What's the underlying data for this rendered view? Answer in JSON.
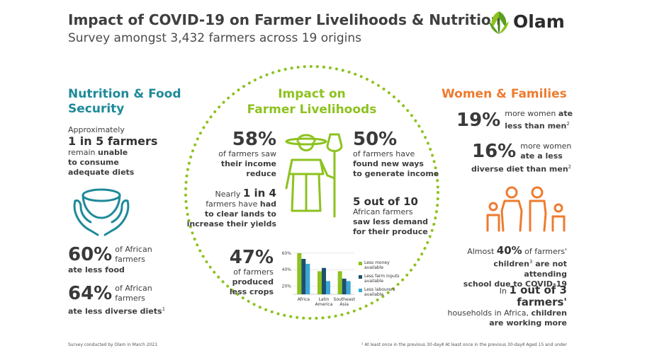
{
  "header": {
    "title": "Impact of COVID-19 on Farmer Livelihoods & Nutrition",
    "subtitle": "Survey amongst 3,432 farmers across 19 origins",
    "logo_text": "Olam"
  },
  "nutrition": {
    "heading_line1": "Nutrition & Food",
    "heading_line2": "Security",
    "intro_line1": "Approximately",
    "intro_big": "1 in 5 farmers",
    "intro_line3a": "remain ",
    "intro_line3b": "unable",
    "intro_line4": "to consume",
    "intro_line5": "adequate diets",
    "stat1_value": "60%",
    "stat1_label_a": "of African",
    "stat1_label_b": "farmers",
    "stat1_label_c": "ate less food",
    "stat2_value": "64%",
    "stat2_label_a": "of African",
    "stat2_label_b": "farmers",
    "stat2_label_c": "ate less diverse diets",
    "stat2_sup": "1"
  },
  "livelihoods": {
    "heading_line1": "Impact on",
    "heading_line2": "Farmer Livelihoods",
    "s1_value": "58%",
    "s1_a": "of farmers saw",
    "s1_b": "their income reduce",
    "s2_value": "50%",
    "s2_a": "of farmers have",
    "s2_b": "found new ways",
    "s2_c": "to generate income",
    "s3_a": "Nearly ",
    "s3_big": "1 in 4",
    "s3_b": "farmers have had",
    "s3_c": "to clear lands to",
    "s3_d": "increase their yields",
    "s4_big": "5 out of 10",
    "s4_a": "African farmers",
    "s4_b": "saw less demand",
    "s4_c": "for their produce",
    "s5_value": "47%",
    "s5_a": "of farmers",
    "s5_b": "produced",
    "s5_c": "less crops"
  },
  "women": {
    "heading": "Women & Families",
    "w1_value": "19%",
    "w1_a": "more women ",
    "w1_b": "ate",
    "w1_c": "less than men",
    "w1_sup": "2",
    "w2_value": "16%",
    "w2_a": "more women",
    "w2_b": "ate a less",
    "w2_c": "diverse diet than men",
    "w2_sup": "2",
    "c1_a": "Almost ",
    "c1_big": "40%",
    "c1_b": " of farmers'",
    "c1_c": "children",
    "c1_sup": "3",
    "c1_d": " are not attending",
    "c1_e": "school due to COVID-19",
    "c2_a": "In ",
    "c2_big": "1 out of 3 farmers'",
    "c2_b": "households in Africa, ",
    "c2_c": "children",
    "c2_d": "are working more"
  },
  "footer": {
    "left": "Survey conducted by Olam in March 2021",
    "n1": "¹ At least once in the previous 30-days",
    "n2": "² At least once in the previous 30-days",
    "n3": "³ Aged 15 and under"
  },
  "colors": {
    "teal": "#1e8a99",
    "green": "#8dc21f",
    "orange": "#ee7b2f",
    "blue": "#3aa7d6",
    "navy": "#1d4f6e"
  },
  "icons": [
    "hands-bowl-icon",
    "farmer-with-shovel-icon",
    "family-icon",
    "olam-leaf-logo-icon"
  ],
  "chart_data": {
    "type": "bar",
    "categories": [
      "Africa",
      "Latin America",
      "Southeast Asia"
    ],
    "series": [
      {
        "name": "Less money available",
        "color": "#8dc21f",
        "values": [
          60,
          38,
          38
        ]
      },
      {
        "name": "Less farm inputs available",
        "color": "#1d4f6e",
        "values": [
          53,
          42,
          29
        ]
      },
      {
        "name": "Less labourers available",
        "color": "#3aa7d6",
        "values": [
          47,
          26,
          26
        ]
      }
    ],
    "ylim": [
      10,
      65
    ],
    "yticks": [
      "20%",
      "40%",
      "60%"
    ],
    "legend": "right"
  }
}
